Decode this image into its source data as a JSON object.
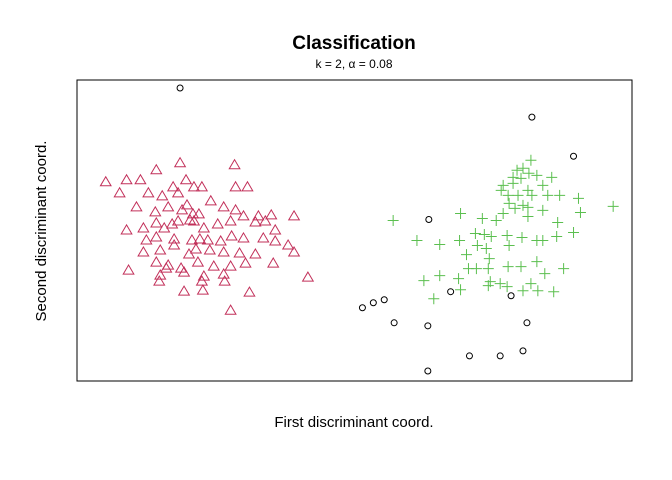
{
  "chart_data": {
    "type": "scatter",
    "title": "Classification",
    "subtitle_prefix": "k = 2, ",
    "subtitle_symbol": "α",
    "subtitle_suffix": " = 0.08",
    "xlabel": "First discriminant coord.",
    "ylabel": "Second discriminant coord.",
    "xlim": [
      70,
      630
    ],
    "ylim": [
      -380,
      -80
    ],
    "axes_visible": false,
    "grid": false,
    "series": [
      {
        "marker": "triangle",
        "color": "#C2305A",
        "points": [
          [
            99,
            -182
          ],
          [
            120,
            -180
          ],
          [
            134,
            -180
          ],
          [
            150,
            -170
          ],
          [
            174,
            -163
          ],
          [
            180,
            -180
          ],
          [
            188,
            -187
          ],
          [
            196,
            -187
          ],
          [
            229,
            -165
          ],
          [
            230,
            -187
          ],
          [
            242,
            -187
          ],
          [
            113,
            -193
          ],
          [
            142,
            -193
          ],
          [
            156,
            -196
          ],
          [
            167,
            -187
          ],
          [
            172,
            -193
          ],
          [
            130,
            -207
          ],
          [
            149,
            -212
          ],
          [
            162,
            -207
          ],
          [
            176,
            -210
          ],
          [
            181,
            -205
          ],
          [
            187,
            -214
          ],
          [
            193,
            -214
          ],
          [
            205,
            -201
          ],
          [
            218,
            -207
          ],
          [
            230,
            -210
          ],
          [
            238,
            -216
          ],
          [
            253,
            -216
          ],
          [
            260,
            -221
          ],
          [
            266,
            -215
          ],
          [
            289,
            -216
          ],
          [
            120,
            -230
          ],
          [
            137,
            -228
          ],
          [
            150,
            -223
          ],
          [
            158,
            -228
          ],
          [
            166,
            -224
          ],
          [
            172,
            -221
          ],
          [
            184,
            -220
          ],
          [
            188,
            -221
          ],
          [
            198,
            -228
          ],
          [
            212,
            -224
          ],
          [
            225,
            -221
          ],
          [
            250,
            -222
          ],
          [
            270,
            -230
          ],
          [
            140,
            -240
          ],
          [
            150,
            -237
          ],
          [
            168,
            -239
          ],
          [
            186,
            -240
          ],
          [
            194,
            -239
          ],
          [
            202,
            -240
          ],
          [
            215,
            -241
          ],
          [
            226,
            -236
          ],
          [
            238,
            -238
          ],
          [
            258,
            -238
          ],
          [
            270,
            -241
          ],
          [
            137,
            -252
          ],
          [
            154,
            -250
          ],
          [
            168,
            -245
          ],
          [
            183,
            -254
          ],
          [
            190,
            -249
          ],
          [
            204,
            -250
          ],
          [
            218,
            -252
          ],
          [
            234,
            -253
          ],
          [
            250,
            -254
          ],
          [
            283,
            -245
          ],
          [
            289,
            -252
          ],
          [
            122,
            -270
          ],
          [
            150,
            -262
          ],
          [
            162,
            -265
          ],
          [
            175,
            -268
          ],
          [
            192,
            -262
          ],
          [
            208,
            -266
          ],
          [
            225,
            -266
          ],
          [
            240,
            -263
          ],
          [
            268,
            -263
          ],
          [
            154,
            -275
          ],
          [
            160,
            -268
          ],
          [
            178,
            -272
          ],
          [
            198,
            -276
          ],
          [
            218,
            -274
          ],
          [
            303,
            -277
          ],
          [
            153,
            -281
          ],
          [
            196,
            -281
          ],
          [
            219,
            -281
          ],
          [
            178,
            -291
          ],
          [
            197,
            -290
          ],
          [
            244,
            -292
          ],
          [
            225,
            -310
          ]
        ]
      },
      {
        "marker": "plus",
        "color": "#5BBF4F",
        "points": [
          [
            528,
            -160
          ],
          [
            514,
            -170
          ],
          [
            520,
            -168
          ],
          [
            526,
            -173
          ],
          [
            534,
            -175
          ],
          [
            549,
            -177
          ],
          [
            510,
            -177
          ],
          [
            518,
            -178
          ],
          [
            500,
            -185
          ],
          [
            510,
            -183
          ],
          [
            540,
            -185
          ],
          [
            525,
            -190
          ],
          [
            498,
            -190
          ],
          [
            505,
            -195
          ],
          [
            515,
            -195
          ],
          [
            529,
            -195
          ],
          [
            545,
            -195
          ],
          [
            557,
            -195
          ],
          [
            576,
            -198
          ],
          [
            506,
            -203
          ],
          [
            520,
            -205
          ],
          [
            512,
            -208
          ],
          [
            525,
            -207
          ],
          [
            540,
            -210
          ],
          [
            611,
            -206
          ],
          [
            500,
            -213
          ],
          [
            578,
            -212
          ],
          [
            389,
            -220
          ],
          [
            457,
            -213
          ],
          [
            479,
            -218
          ],
          [
            493,
            -220
          ],
          [
            525,
            -216
          ],
          [
            555,
            -222
          ],
          [
            472,
            -233
          ],
          [
            481,
            -234
          ],
          [
            488,
            -236
          ],
          [
            504,
            -235
          ],
          [
            519,
            -237
          ],
          [
            534,
            -240
          ],
          [
            554,
            -236
          ],
          [
            571,
            -232
          ],
          [
            413,
            -240
          ],
          [
            436,
            -244
          ],
          [
            456,
            -240
          ],
          [
            474,
            -245
          ],
          [
            483,
            -248
          ],
          [
            506,
            -245
          ],
          [
            540,
            -240
          ],
          [
            463,
            -254
          ],
          [
            486,
            -258
          ],
          [
            505,
            -266
          ],
          [
            518,
            -266
          ],
          [
            485,
            -268
          ],
          [
            473,
            -268
          ],
          [
            534,
            -261
          ],
          [
            420,
            -280
          ],
          [
            436,
            -275
          ],
          [
            455,
            -278
          ],
          [
            465,
            -268
          ],
          [
            542,
            -273
          ],
          [
            561,
            -268
          ],
          [
            487,
            -281
          ],
          [
            497,
            -283
          ],
          [
            528,
            -283
          ],
          [
            457,
            -289
          ],
          [
            485,
            -285
          ],
          [
            504,
            -286
          ],
          [
            520,
            -290
          ],
          [
            535,
            -290
          ],
          [
            551,
            -291
          ],
          [
            430,
            -298
          ]
        ]
      },
      {
        "marker": "circle",
        "color": "#000000",
        "points": [
          [
            174,
            -88
          ],
          [
            529,
            -117
          ],
          [
            571,
            -156
          ],
          [
            425,
            -219
          ],
          [
            358,
            -307
          ],
          [
            369,
            -302
          ],
          [
            380,
            -299
          ],
          [
            447,
            -291
          ],
          [
            508,
            -295
          ],
          [
            390,
            -322
          ],
          [
            424,
            -325
          ],
          [
            524,
            -322
          ],
          [
            520,
            -350
          ],
          [
            466,
            -355
          ],
          [
            497,
            -355
          ],
          [
            424,
            -370
          ]
        ]
      }
    ]
  }
}
